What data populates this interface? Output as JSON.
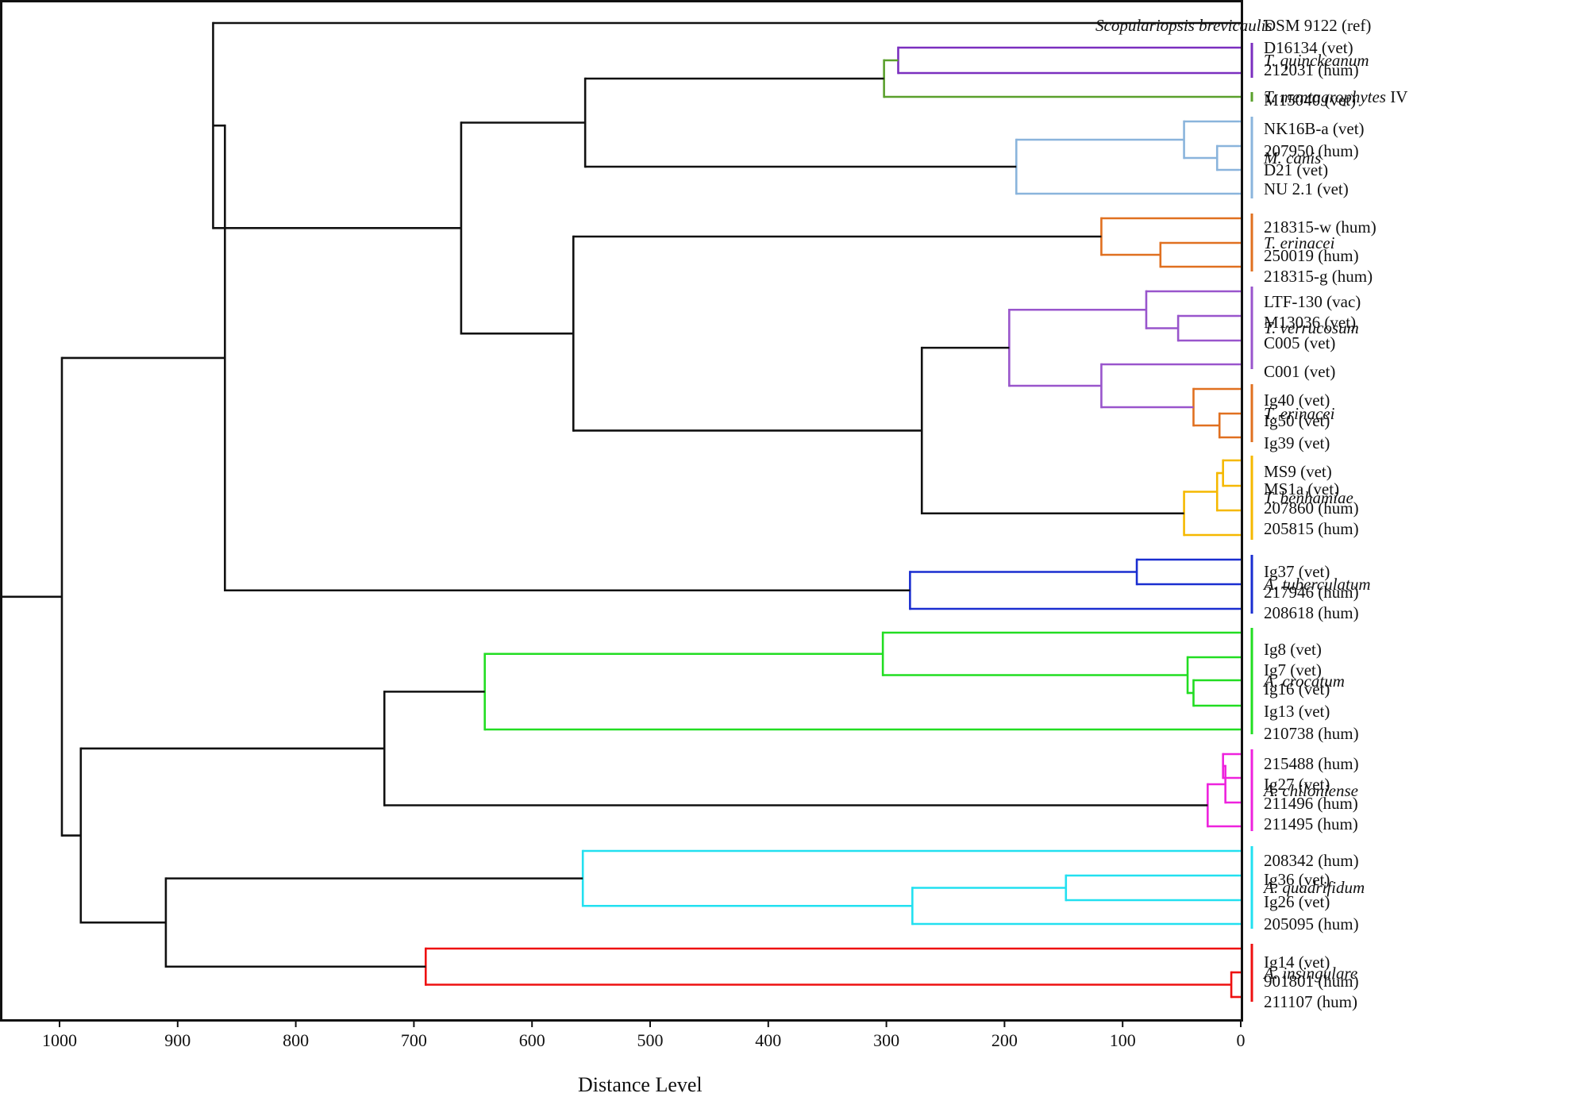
{
  "chart_data": {
    "type": "dendrogram",
    "title": "",
    "xlabel": "Distance Level",
    "ylabel": "",
    "xlim": [
      1000,
      0
    ],
    "xticks": [
      1000,
      900,
      800,
      700,
      600,
      500,
      400,
      300,
      200,
      100,
      0
    ],
    "leaves": [
      {
        "id": "ref",
        "strain": "DSM 9122 (ref)"
      },
      {
        "id": "l1",
        "strain": "D16134 (vet)"
      },
      {
        "id": "l2",
        "strain": "212031 (hum)"
      },
      {
        "id": "l3",
        "strain": "M15040 (vet)"
      },
      {
        "id": "l4",
        "strain": "NK16B-a (vet)"
      },
      {
        "id": "l5",
        "strain": "207950 (hum)"
      },
      {
        "id": "l6",
        "strain": "D21 (vet)"
      },
      {
        "id": "l7",
        "strain": "NU 2.1 (vet)"
      },
      {
        "id": "l8",
        "strain": "218315-w (hum)"
      },
      {
        "id": "l9",
        "strain": "250019 (hum)"
      },
      {
        "id": "l10",
        "strain": "218315-g (hum)"
      },
      {
        "id": "l11",
        "strain": "LTF-130 (vac)"
      },
      {
        "id": "l12",
        "strain": "M13036 (vet)"
      },
      {
        "id": "l13",
        "strain": "C005 (vet)"
      },
      {
        "id": "l14",
        "strain": "C001 (vet)"
      },
      {
        "id": "l15",
        "strain": "Ig40 (vet)"
      },
      {
        "id": "l16",
        "strain": "Ig50 (vet)"
      },
      {
        "id": "l17",
        "strain": "Ig39 (vet)"
      },
      {
        "id": "l18",
        "strain": "MS9 (vet)"
      },
      {
        "id": "l19",
        "strain": "MS1a (vet)"
      },
      {
        "id": "l20",
        "strain": "207860 (hum)"
      },
      {
        "id": "l21",
        "strain": "205815 (hum)"
      },
      {
        "id": "l22",
        "strain": "Ig37 (vet)"
      },
      {
        "id": "l23",
        "strain": "217946 (hum)"
      },
      {
        "id": "l24",
        "strain": "208618 (hum)"
      },
      {
        "id": "l25",
        "strain": "Ig8 (vet)"
      },
      {
        "id": "l26",
        "strain": "Ig7 (vet)"
      },
      {
        "id": "l27",
        "strain": "Ig16 (vet)"
      },
      {
        "id": "l28",
        "strain": "Ig13 (vet)"
      },
      {
        "id": "l29",
        "strain": "210738 (hum)"
      },
      {
        "id": "l30",
        "strain": "215488 (hum)"
      },
      {
        "id": "l31",
        "strain": "Ig27 (vet)"
      },
      {
        "id": "l32",
        "strain": "211496 (hum)"
      },
      {
        "id": "l33",
        "strain": "211495 (hum)"
      },
      {
        "id": "l34",
        "strain": "208342 (hum)"
      },
      {
        "id": "l35",
        "strain": "Ig36 (vet)"
      },
      {
        "id": "l36",
        "strain": "Ig26 (vet)"
      },
      {
        "id": "l37",
        "strain": "205095 (hum)"
      },
      {
        "id": "l38",
        "strain": "Ig14 (vet)"
      },
      {
        "id": "l39",
        "strain": "901801 (hum)"
      },
      {
        "id": "l40",
        "strain": "211107 (hum)"
      }
    ],
    "ref_species": "Scopulariopsis brevicaulis",
    "clades": [
      {
        "name": "T. quinckeanum",
        "suffix": "",
        "color": "#7b2fbf",
        "first_leaf": 1,
        "last_leaf": 2
      },
      {
        "name": "T. mentagrophytes",
        "suffix": " IV",
        "color": "#5aa02c",
        "first_leaf": 3,
        "last_leaf": 3
      },
      {
        "name": "M. canis",
        "suffix": "",
        "color": "#8ab4dc",
        "first_leaf": 4,
        "last_leaf": 7
      },
      {
        "name": "T. erinacei",
        "suffix": "",
        "color": "#e07020",
        "first_leaf": 8,
        "last_leaf": 10
      },
      {
        "name": "T.  verrucosum",
        "suffix": "",
        "color": "#9955cc",
        "first_leaf": 11,
        "last_leaf": 14
      },
      {
        "name": "T. erinacei",
        "suffix": "",
        "color": "#e07020",
        "first_leaf": 15,
        "last_leaf": 17
      },
      {
        "name": "T. benhamiae",
        "suffix": "",
        "color": "#f5b800",
        "first_leaf": 18,
        "last_leaf": 21
      },
      {
        "name": "A. tuberculatum",
        "suffix": "",
        "color": "#1a2ed0",
        "first_leaf": 22,
        "last_leaf": 24
      },
      {
        "name": "A. crocatum",
        "suffix": "",
        "color": "#22dd22",
        "first_leaf": 25,
        "last_leaf": 29
      },
      {
        "name": "A. chiloniense",
        "suffix": "",
        "color": "#ee22dd",
        "first_leaf": 30,
        "last_leaf": 33
      },
      {
        "name": "A. quadrifidum",
        "suffix": "",
        "color": "#22e0f0",
        "first_leaf": 34,
        "last_leaf": 37
      },
      {
        "name": "A. insingulare",
        "suffix": "",
        "color": "#ee1111",
        "first_leaf": 38,
        "last_leaf": 40
      }
    ],
    "merges": [
      {
        "id": "n1",
        "height": 290,
        "children": [
          "l1",
          "l2"
        ],
        "color": "#7b2fbf"
      },
      {
        "id": "n2",
        "height": 302,
        "children": [
          "n1",
          "l3"
        ],
        "color": "#5aa02c"
      },
      {
        "id": "n3",
        "height": 20,
        "children": [
          "l5",
          "l6"
        ],
        "color": "#8ab4dc"
      },
      {
        "id": "n4",
        "height": 48,
        "children": [
          "l4",
          "n3"
        ],
        "color": "#8ab4dc"
      },
      {
        "id": "n5",
        "height": 190,
        "children": [
          "n4",
          "l7"
        ],
        "color": "#8ab4dc"
      },
      {
        "id": "n6",
        "height": 555,
        "children": [
          "n2",
          "n5"
        ],
        "color": "#111111"
      },
      {
        "id": "n7",
        "height": 68,
        "children": [
          "l9",
          "l10"
        ],
        "color": "#e07020"
      },
      {
        "id": "n8",
        "height": 118,
        "children": [
          "l8",
          "n7"
        ],
        "color": "#e07020"
      },
      {
        "id": "n9",
        "height": 53,
        "children": [
          "l12",
          "l13"
        ],
        "color": "#9955cc"
      },
      {
        "id": "n10",
        "height": 80,
        "children": [
          "l11",
          "n9"
        ],
        "color": "#9955cc"
      },
      {
        "id": "n11",
        "height": 18,
        "children": [
          "l16",
          "l17"
        ],
        "color": "#e07020"
      },
      {
        "id": "n12",
        "height": 40,
        "children": [
          "l15",
          "n11"
        ],
        "color": "#e07020"
      },
      {
        "id": "n13",
        "height": 118,
        "children": [
          "l14",
          "n12"
        ],
        "color": "#9955cc"
      },
      {
        "id": "n14",
        "height": 196,
        "children": [
          "n10",
          "n13"
        ],
        "color": "#9955cc"
      },
      {
        "id": "n15",
        "height": 15,
        "children": [
          "l18",
          "l19"
        ],
        "color": "#f5b800"
      },
      {
        "id": "n16",
        "height": 20,
        "children": [
          "n15",
          "l20"
        ],
        "color": "#f5b800"
      },
      {
        "id": "n17",
        "height": 48,
        "children": [
          "n16",
          "l21"
        ],
        "color": "#f5b800"
      },
      {
        "id": "n18",
        "height": 270,
        "children": [
          "n14",
          "n17"
        ],
        "color": "#111111"
      },
      {
        "id": "n19",
        "height": 565,
        "children": [
          "n8",
          "n18"
        ],
        "color": "#111111"
      },
      {
        "id": "n20",
        "height": 660,
        "children": [
          "n6",
          "n19"
        ],
        "color": "#111111"
      },
      {
        "id": "n21",
        "height": 870,
        "children": [
          "ref",
          "n20"
        ],
        "color": "#111111"
      },
      {
        "id": "n22",
        "height": 88,
        "children": [
          "l22",
          "l23"
        ],
        "color": "#1a2ed0"
      },
      {
        "id": "n23",
        "height": 280,
        "children": [
          "n22",
          "l24"
        ],
        "color": "#1a2ed0"
      },
      {
        "id": "n24",
        "height": 860,
        "children": [
          "n21",
          "n23"
        ],
        "color": "#111111"
      },
      {
        "id": "n25",
        "height": 40,
        "children": [
          "l27",
          "l28"
        ],
        "color": "#22dd22"
      },
      {
        "id": "n26",
        "height": 45,
        "children": [
          "l26",
          "n25"
        ],
        "color": "#22dd22"
      },
      {
        "id": "n27",
        "height": 303,
        "children": [
          "l25",
          "n26"
        ],
        "color": "#22dd22"
      },
      {
        "id": "n28",
        "height": 640,
        "children": [
          "n27",
          "l29"
        ],
        "color": "#22dd22"
      },
      {
        "id": "n29",
        "height": 15,
        "children": [
          "l30",
          "l31"
        ],
        "color": "#ee22dd"
      },
      {
        "id": "n30",
        "height": 13,
        "children": [
          "n29",
          "l32"
        ],
        "color": "#ee22dd"
      },
      {
        "id": "n31",
        "height": 28,
        "children": [
          "n30",
          "l33"
        ],
        "color": "#ee22dd"
      },
      {
        "id": "n32",
        "height": 725,
        "children": [
          "n28",
          "n31"
        ],
        "color": "#111111"
      },
      {
        "id": "n33",
        "height": 148,
        "children": [
          "l35",
          "l36"
        ],
        "color": "#22e0f0"
      },
      {
        "id": "n34",
        "height": 278,
        "children": [
          "n33",
          "l37"
        ],
        "color": "#22e0f0"
      },
      {
        "id": "n35",
        "height": 557,
        "children": [
          "l34",
          "n34"
        ],
        "color": "#22e0f0"
      },
      {
        "id": "n36",
        "height": 8,
        "children": [
          "l39",
          "l40"
        ],
        "color": "#ee1111"
      },
      {
        "id": "n37",
        "height": 690,
        "children": [
          "l38",
          "n36"
        ],
        "color": "#ee1111"
      },
      {
        "id": "n38",
        "height": 910,
        "children": [
          "n35",
          "n37"
        ],
        "color": "#111111"
      },
      {
        "id": "n39",
        "height": 982,
        "children": [
          "n32",
          "n38"
        ],
        "color": "#111111"
      },
      {
        "id": "n40",
        "height": 998,
        "children": [
          "n24",
          "n39"
        ],
        "color": "#111111"
      }
    ]
  }
}
